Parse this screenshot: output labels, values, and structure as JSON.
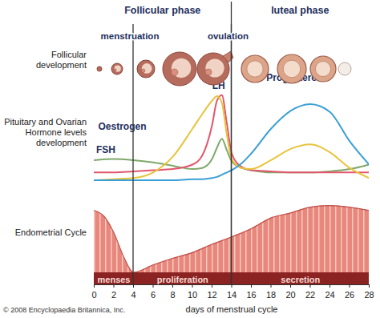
{
  "chart_data": {
    "type": "line",
    "phases": [
      {
        "label": "Follicular phase",
        "start": 0,
        "end": 14
      },
      {
        "label": "luteal phase",
        "start": 14,
        "end": 28
      }
    ],
    "events": [
      {
        "label": "menstruation",
        "x": 4
      },
      {
        "label": "ovulation",
        "x": 14
      }
    ],
    "row_labels": [
      "Follicular development",
      "Pituitary and Ovarian Hormone levels development",
      "Endometrial Cycle"
    ],
    "x": [
      0,
      2,
      4,
      6,
      8,
      10,
      11,
      12,
      12.5,
      13,
      13.5,
      14,
      15,
      16,
      18,
      20,
      22,
      24,
      26,
      28
    ],
    "series": [
      {
        "name": "FSH",
        "color": "#7fa86a",
        "values": [
          29,
          30,
          29,
          27,
          24,
          21,
          22,
          30,
          40,
          48,
          38,
          28,
          22,
          20,
          18,
          18,
          18,
          19,
          21,
          25
        ]
      },
      {
        "name": "LH",
        "color": "#e2566c",
        "values": [
          18,
          18,
          19,
          20,
          21,
          25,
          33,
          60,
          82,
          87,
          62,
          35,
          23,
          20,
          19,
          18,
          18,
          18,
          18,
          18
        ]
      },
      {
        "name": "Oestrogen",
        "color": "#e8c33c",
        "values": [
          11,
          12,
          13,
          18,
          32,
          57,
          70,
          82,
          86,
          80,
          52,
          30,
          22,
          21,
          29,
          39,
          43,
          36,
          22,
          13
        ]
      },
      {
        "name": "Progesterone",
        "color": "#3a9fd6",
        "values": [
          11,
          11,
          11,
          11,
          11,
          12,
          12,
          13,
          14,
          16,
          18,
          20,
          26,
          35,
          57,
          73,
          79,
          72,
          46,
          25
        ]
      }
    ],
    "xlim": [
      0,
      28
    ],
    "xticks": [
      0,
      2,
      4,
      6,
      8,
      10,
      12,
      14,
      16,
      18,
      20,
      22,
      24,
      26,
      28
    ],
    "ylim": [
      0,
      100
    ],
    "x_label": "days of menstrual cycle",
    "tick_labels": "x",
    "endometrium": {
      "x": [
        0,
        1,
        2,
        3,
        4,
        6,
        8,
        10,
        12,
        14,
        16,
        18,
        20,
        22,
        24,
        26,
        28
      ],
      "values": [
        90,
        83,
        63,
        34,
        15,
        24,
        32,
        39,
        49,
        58,
        68,
        81,
        87,
        94,
        96,
        94,
        90
      ],
      "color": "#e8877c",
      "ylim": [
        0,
        100
      ],
      "phases": [
        {
          "label": "menses",
          "start": 0,
          "end": 4
        },
        {
          "label": "proliferation",
          "start": 4,
          "end": 14
        },
        {
          "label": "secretion",
          "start": 14,
          "end": 28
        }
      ]
    },
    "source": "© 2008 Encyclopaedia Britannica, Inc."
  }
}
